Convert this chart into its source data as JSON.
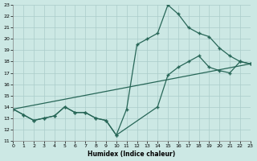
{
  "xlabel": "Humidex (Indice chaleur)",
  "bg_color": "#cce8e4",
  "grid_color": "#aaccca",
  "line_color": "#276657",
  "xmin": 0,
  "xmax": 23,
  "ymin": 11,
  "ymax": 23,
  "line1_x": [
    0,
    1,
    2,
    3,
    4,
    5,
    6,
    7,
    8,
    9,
    10,
    11,
    12,
    13,
    14,
    15,
    16,
    17,
    18,
    19,
    20,
    21,
    22,
    23
  ],
  "line1_y": [
    13.8,
    13.3,
    12.8,
    13.0,
    13.2,
    14.0,
    13.5,
    13.5,
    13.0,
    12.8,
    11.5,
    13.8,
    19.5,
    20.0,
    20.5,
    23.0,
    22.2,
    21.0,
    20.5,
    20.2,
    19.2,
    18.5,
    18.0,
    17.8
  ],
  "line2_x": [
    0,
    1,
    2,
    3,
    4,
    5,
    6,
    7,
    8,
    9,
    10,
    14,
    15,
    16,
    17,
    18,
    19,
    20,
    21,
    22,
    23
  ],
  "line2_y": [
    13.8,
    13.3,
    12.8,
    13.0,
    13.2,
    14.0,
    13.5,
    13.5,
    13.0,
    12.8,
    11.5,
    14.0,
    16.8,
    17.5,
    18.0,
    18.5,
    17.5,
    17.2,
    17.0,
    18.0,
    17.8
  ],
  "line3_x": [
    0,
    23
  ],
  "line3_y": [
    13.8,
    17.8
  ]
}
